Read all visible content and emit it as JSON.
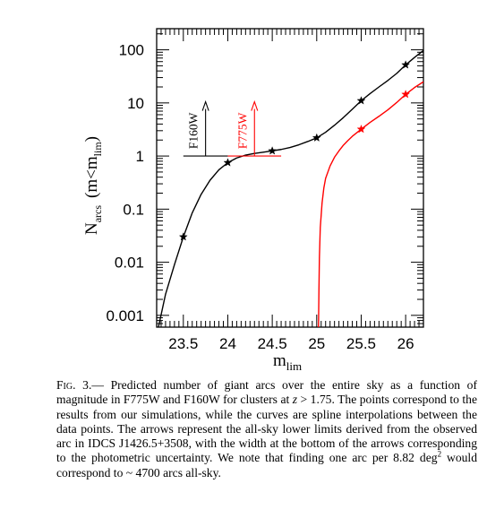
{
  "chart_data": {
    "type": "line",
    "title": "",
    "xlabel_main": "m",
    "xlabel_sub": "lim",
    "ylabel_N": "N",
    "ylabel_N_sub": "arcs",
    "ylabel_rest": "(m<m",
    "ylabel_rest_sub": "lim",
    "ylabel_close": ")",
    "xlim": [
      23.2,
      26.2
    ],
    "ylim": [
      0.0006,
      250
    ],
    "yscale": "log",
    "x_ticks": [
      23.5,
      24,
      24.5,
      25,
      25.5,
      26
    ],
    "x_tick_labels": [
      "23.5",
      "24",
      "24.5",
      "25",
      "25.5",
      "26"
    ],
    "y_ticks": [
      0.001,
      0.01,
      0.1,
      1,
      10,
      100
    ],
    "y_tick_labels": [
      "0.001",
      "0.01",
      "0.1",
      "1",
      "10",
      "100"
    ],
    "series": [
      {
        "color": "#000000",
        "points": [
          [
            23.5,
            0.03
          ],
          [
            24.0,
            0.75
          ],
          [
            24.5,
            1.25
          ],
          [
            25.0,
            2.2
          ],
          [
            25.5,
            11.0
          ],
          [
            26.0,
            52.0
          ]
        ],
        "curve": [
          [
            23.22,
            0.0006
          ],
          [
            23.3,
            0.0025
          ],
          [
            23.4,
            0.009
          ],
          [
            23.5,
            0.03
          ],
          [
            23.6,
            0.085
          ],
          [
            23.7,
            0.19
          ],
          [
            23.8,
            0.35
          ],
          [
            23.9,
            0.55
          ],
          [
            24.0,
            0.75
          ],
          [
            24.1,
            0.92
          ],
          [
            24.2,
            1.04
          ],
          [
            24.3,
            1.12
          ],
          [
            24.4,
            1.18
          ],
          [
            24.5,
            1.25
          ],
          [
            24.6,
            1.33
          ],
          [
            24.7,
            1.45
          ],
          [
            24.8,
            1.63
          ],
          [
            24.9,
            1.88
          ],
          [
            25.0,
            2.2
          ],
          [
            25.1,
            2.8
          ],
          [
            25.2,
            3.8
          ],
          [
            25.3,
            5.3
          ],
          [
            25.4,
            7.6
          ],
          [
            25.5,
            11.0
          ],
          [
            25.6,
            15.0
          ],
          [
            25.7,
            20.0
          ],
          [
            25.8,
            26.5
          ],
          [
            25.9,
            36.0
          ],
          [
            26.0,
            52.0
          ],
          [
            26.1,
            72.0
          ],
          [
            26.2,
            97.0
          ]
        ]
      },
      {
        "color": "#ff0000",
        "points": [
          [
            25.5,
            3.2
          ],
          [
            26.0,
            14.5
          ]
        ],
        "curve": [
          [
            25.02,
            0.0006
          ],
          [
            25.025,
            0.003
          ],
          [
            25.03,
            0.012
          ],
          [
            25.04,
            0.045
          ],
          [
            25.06,
            0.13
          ],
          [
            25.08,
            0.25
          ],
          [
            25.1,
            0.38
          ],
          [
            25.15,
            0.65
          ],
          [
            25.2,
            0.95
          ],
          [
            25.25,
            1.25
          ],
          [
            25.3,
            1.6
          ],
          [
            25.35,
            1.95
          ],
          [
            25.4,
            2.35
          ],
          [
            25.5,
            3.2
          ],
          [
            25.6,
            4.3
          ],
          [
            25.7,
            5.6
          ],
          [
            25.8,
            7.4
          ],
          [
            25.9,
            10.2
          ],
          [
            26.0,
            14.5
          ],
          [
            26.1,
            19.5
          ],
          [
            26.2,
            25.0
          ]
        ]
      }
    ],
    "annotations": [
      {
        "label": "F160W",
        "color": "#000000",
        "x": 23.75,
        "x_range": [
          23.5,
          24.0
        ],
        "y_base": 1.0,
        "y_top": 10.5
      },
      {
        "label": "F775W",
        "color": "#ff0000",
        "x": 24.3,
        "x_range": [
          24.0,
          24.6
        ],
        "y_base": 1.0,
        "y_top": 10.5
      }
    ]
  },
  "caption": {
    "fig_label": "Fig. 3.",
    "dash": "—",
    "part1": " Predicted number of giant arcs over the entire sky as a function of magnitude in F775W and F160W for clusters at ",
    "z_var": "z",
    "part2": " > 1.75. The points correspond to the results from our simulations, while the curves are spline interpolations between the data points. The arrows represent the all-sky lower limits derived from the observed arc in IDCS J1426.5+3508, with the width at the bottom of the arrows corresponding to the photometric uncertainty. We note that finding one arc per 8.82 deg",
    "sup": "2",
    "part3": " would correspond to ~ 4700 arcs all-sky."
  }
}
